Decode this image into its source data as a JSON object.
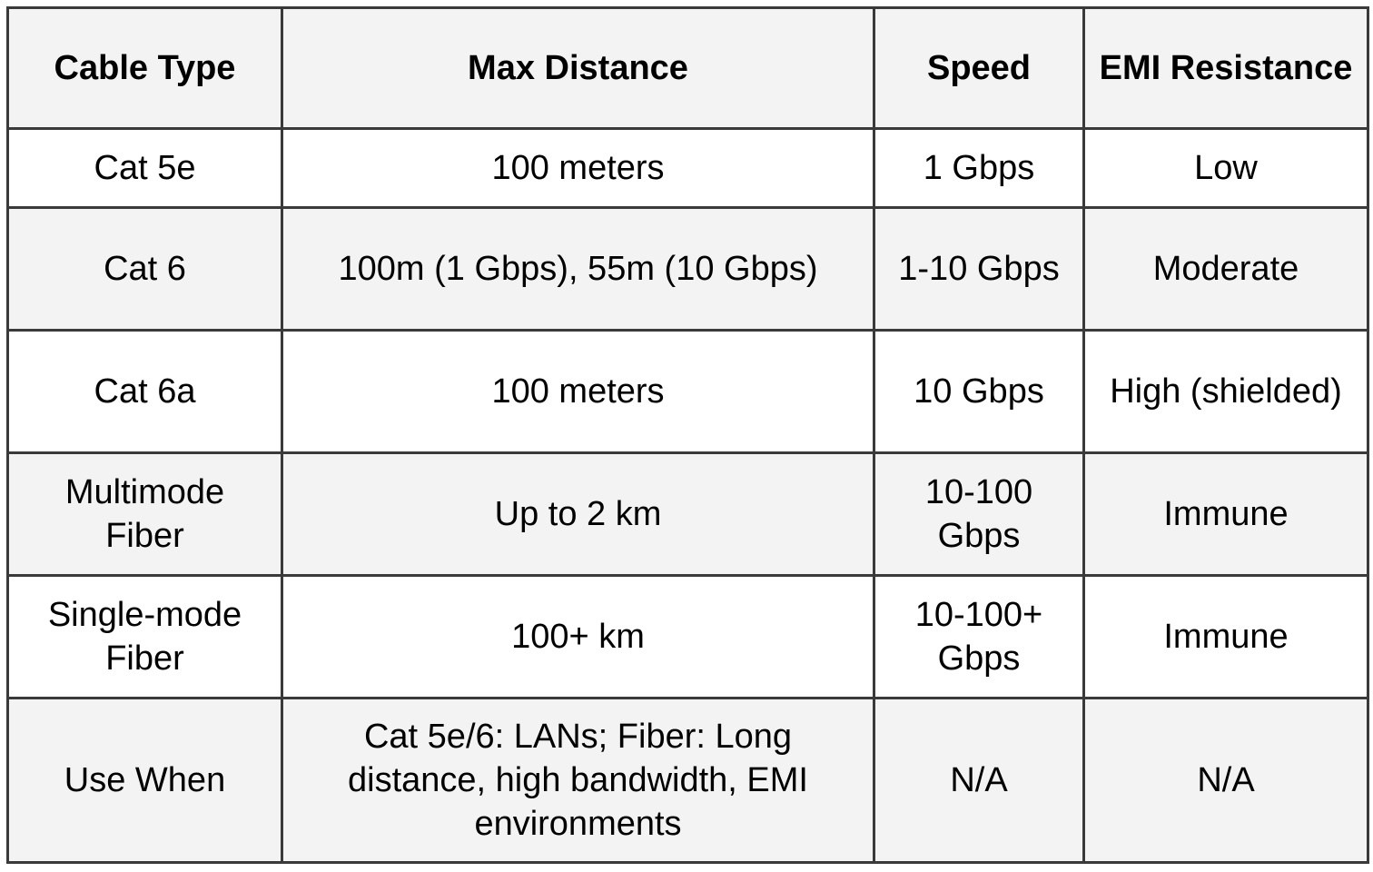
{
  "table": {
    "headers": [
      "Cable Type",
      "Max Distance",
      "Speed",
      "EMI Resistance"
    ],
    "rows": [
      [
        "Cat 5e",
        "100 meters",
        "1 Gbps",
        "Low"
      ],
      [
        "Cat 6",
        "100m (1 Gbps), 55m (10 Gbps)",
        "1-10 Gbps",
        "Moderate"
      ],
      [
        "Cat 6a",
        "100 meters",
        "10 Gbps",
        "High (shielded)"
      ],
      [
        "Multimode Fiber",
        "Up to 2 km",
        "10-100 Gbps",
        "Immune"
      ],
      [
        "Single-mode Fiber",
        "100+ km",
        "10-100+ Gbps",
        "Immune"
      ],
      [
        "Use When",
        "Cat 5e/6: LANs; Fiber: Long distance, high bandwidth, EMI environments",
        "N/A",
        "N/A"
      ]
    ]
  }
}
